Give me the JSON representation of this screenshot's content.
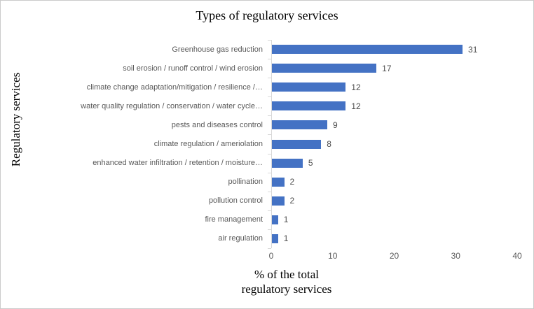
{
  "title": "Types of regulatory services",
  "y_axis_title": "Regulatory services",
  "x_axis_title_lines": [
    "% of the total",
    "regulatory services"
  ],
  "colors": {
    "bar": "#4472C4",
    "axis_line": "#D9D9D9",
    "category_label_text": "#595959",
    "value_label_text": "#4D4D4D",
    "title_text": "#000000"
  },
  "chart_data": {
    "type": "bar",
    "orientation": "horizontal",
    "title": "Types of regulatory services",
    "xlabel": "% of the total regulatory services",
    "ylabel": "Regulatory services",
    "xlim": [
      0,
      40
    ],
    "x_tick_values": [
      0,
      10,
      20,
      30,
      40
    ],
    "x_tick_labels": [
      "0",
      "10",
      "20",
      "30",
      "40"
    ],
    "grid": false,
    "legend": false,
    "data_labels": true,
    "categories": [
      "Greenhouse gas reduction",
      "soil erosion / runoff control / wind erosion",
      "climate change adaptation/mitigation / resilience /…",
      "water quality regulation / conservation / water cycle…",
      "pests and diseases control",
      "climate regulation / ameriolation",
      "enhanced water infiltration / retention / moisture…",
      "pollination",
      "pollution control",
      "fire management",
      "air regulation"
    ],
    "values": [
      31,
      17,
      12,
      12,
      9,
      8,
      5,
      2,
      2,
      1,
      1
    ]
  }
}
